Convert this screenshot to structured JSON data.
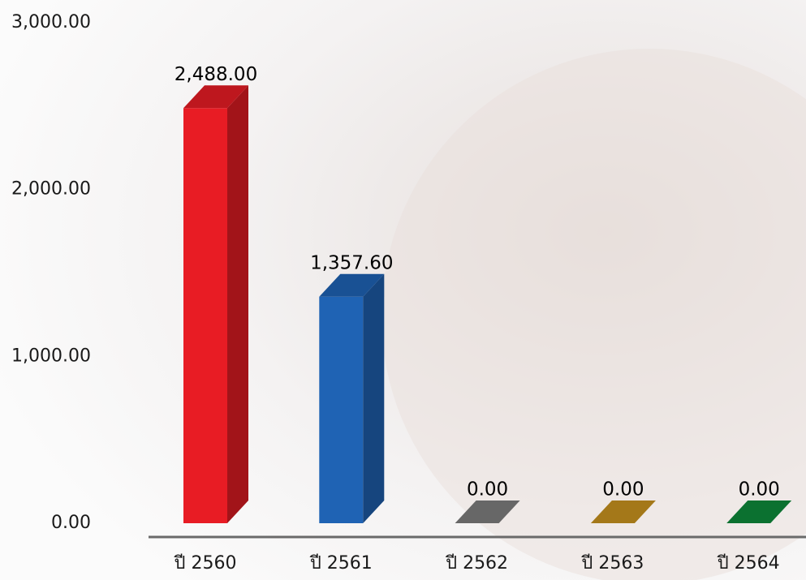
{
  "chart_data": {
    "type": "bar3d",
    "categories": [
      "ปี 2560",
      "ปี 2561",
      "ปี 2562",
      "ปี 2563",
      "ปี 2564"
    ],
    "values": [
      2488,
      1357.6,
      0,
      0,
      0
    ],
    "value_labels": [
      "2,488.00",
      "1,357.60",
      "0.00",
      "0.00",
      "0.00"
    ],
    "colors": [
      "#e81c24",
      "#1f63b4",
      "#7d7d7d",
      "#c8921f",
      "#0e8a3b"
    ],
    "ylim": [
      0,
      3000
    ],
    "yticks": [
      {
        "value": 0,
        "label": "0.00"
      },
      {
        "value": 1000,
        "label": "1,000.00"
      },
      {
        "value": 2000,
        "label": "2,000.00"
      },
      {
        "value": 3000,
        "label": "3,000.00"
      }
    ],
    "grid": false
  }
}
